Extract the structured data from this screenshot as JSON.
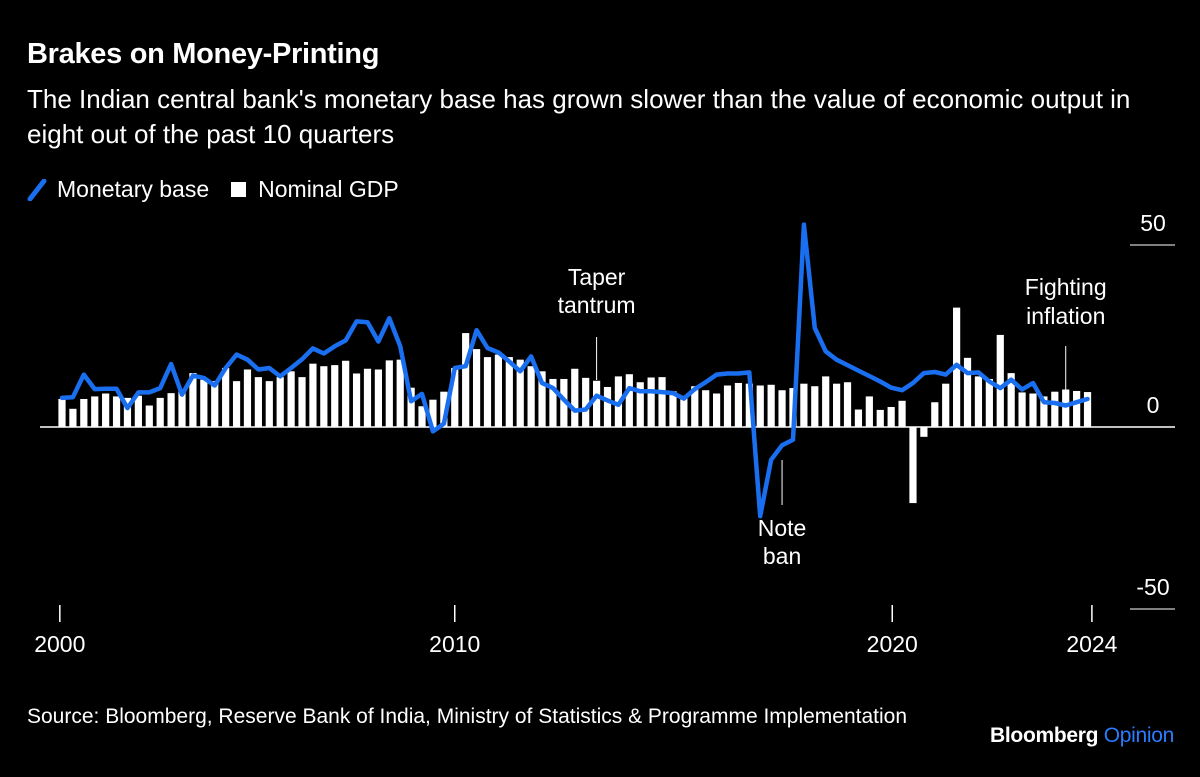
{
  "chart_data": {
    "type": "bar+line",
    "title": "Brakes on Money-Printing",
    "subtitle": "The Indian central bank's monetary base has grown slower than the value of economic output in eight out of the past 10 quarters",
    "ylim": [
      -50,
      55
    ],
    "y_ticks": [
      {
        "value": 50,
        "label": "50"
      },
      {
        "value": 0,
        "label": "0"
      },
      {
        "value": -50,
        "label": "-50"
      }
    ],
    "x_ticks": [
      {
        "index": -0.2,
        "label": "2000"
      },
      {
        "index": 36,
        "label": "2010"
      },
      {
        "index": 76.1,
        "label": "2020"
      },
      {
        "index": 94.4,
        "label": "2024"
      }
    ],
    "legend_position": "top-left",
    "grid": false,
    "series": [
      {
        "name": "Monetary base",
        "type": "line",
        "color": "#1a6ff0",
        "values": [
          8.0,
          8.2,
          14.4,
          10.4,
          10.5,
          10.5,
          5.2,
          9.5,
          9.5,
          10.7,
          17.3,
          8.9,
          14.1,
          13.5,
          11.4,
          16.2,
          19.9,
          18.5,
          15.8,
          16.2,
          13.9,
          16.2,
          18.6,
          21.6,
          20.2,
          22.2,
          23.8,
          29.0,
          28.8,
          23.5,
          29.9,
          22.2,
          7.1,
          9.1,
          -1.2,
          0.9,
          16.2,
          16.7,
          26.6,
          21.7,
          20.5,
          18.0,
          15.3,
          19.4,
          12.1,
          10.7,
          7.5,
          4.5,
          4.8,
          8.6,
          7.3,
          6.1,
          10.7,
          9.8,
          9.8,
          9.6,
          9.3,
          7.8,
          10.4,
          12.3,
          14.4,
          14.7,
          14.7,
          15.0,
          -24.5,
          -9.0,
          -5.0,
          -3.5,
          55.6,
          27.2,
          20.8,
          18.5,
          17.0,
          15.5,
          14.0,
          12.5,
          10.8,
          10.1,
          12.1,
          14.8,
          15.1,
          14.4,
          17.1,
          14.8,
          15.0,
          12.5,
          10.7,
          13.0,
          10.3,
          12.1,
          6.8,
          6.6,
          5.9,
          6.8,
          7.7
        ]
      },
      {
        "name": "Nominal GDP",
        "type": "bar",
        "color": "#ffffff",
        "values": [
          7.7,
          5.0,
          7.7,
          8.4,
          9.2,
          8.4,
          8.0,
          8.6,
          5.9,
          8.0,
          9.3,
          10.3,
          14.8,
          13.0,
          12.6,
          16.2,
          12.6,
          15.8,
          13.7,
          12.6,
          13.7,
          15.3,
          13.7,
          17.4,
          16.7,
          17.0,
          18.2,
          14.7,
          16.0,
          15.8,
          18.3,
          18.5,
          10.8,
          5.7,
          7.5,
          9.7,
          16.2,
          25.8,
          21.4,
          19.2,
          19.9,
          19.2,
          18.5,
          16.7,
          15.3,
          13.2,
          13.2,
          16.0,
          13.5,
          12.7,
          11.0,
          13.9,
          14.5,
          12.3,
          13.6,
          13.7,
          9.8,
          8.4,
          11.2,
          10.1,
          9.2,
          11.4,
          12.1,
          11.9,
          11.4,
          11.6,
          10.1,
          10.7,
          11.9,
          11.2,
          13.9,
          11.9,
          12.3,
          4.8,
          8.4,
          4.7,
          5.5,
          7.2,
          -20.9,
          -2.7,
          6.8,
          11.9,
          32.8,
          19.0,
          13.9,
          13.2,
          25.3,
          14.8,
          9.5,
          9.2,
          8.4,
          9.7,
          10.3,
          9.9,
          9.6
        ]
      }
    ],
    "annotations": [
      {
        "lines": [
          "Taper",
          "tantrum"
        ],
        "index": 49
      },
      {
        "lines": [
          "Note",
          "ban"
        ],
        "index": 66
      },
      {
        "lines": [
          "Fighting",
          "inflation"
        ],
        "index": 92
      }
    ]
  },
  "legend": {
    "line_label": "Monetary base",
    "bar_label": "Nominal GDP"
  },
  "source": "Source: Bloomberg, Reserve Bank of India, Ministry of Statistics & Programme Implementation",
  "logo": {
    "brand": "Bloomberg",
    "suffix": "Opinion",
    "accent": "#2b7bff"
  }
}
